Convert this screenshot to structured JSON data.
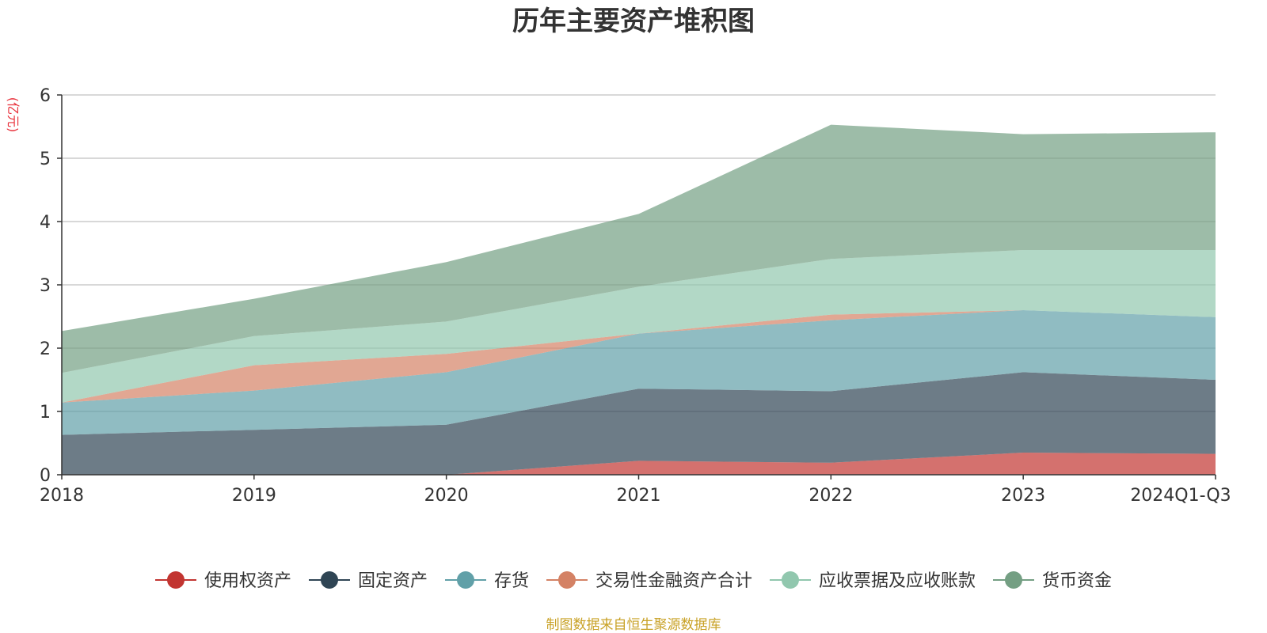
{
  "chart_data": {
    "type": "area",
    "stacked": true,
    "title": "历年主要资产堆积图",
    "ylabel": "(亿元)",
    "xlabel": "",
    "x": [
      "2018",
      "2019",
      "2020",
      "2021",
      "2022",
      "2023",
      "2024Q1-Q3"
    ],
    "ylim": [
      0,
      6
    ],
    "yticks": [
      0,
      1,
      2,
      3,
      4,
      5,
      6
    ],
    "grid": true,
    "legend_position": "bottom",
    "series": [
      {
        "name": "使用权资产",
        "color": "#c23531",
        "values": [
          0.0,
          0.0,
          0.0,
          0.22,
          0.19,
          0.35,
          0.33
        ]
      },
      {
        "name": "固定资产",
        "color": "#2f4554",
        "values": [
          0.63,
          0.71,
          0.79,
          1.14,
          1.13,
          1.27,
          1.17
        ]
      },
      {
        "name": "存货",
        "color": "#61a0a8",
        "values": [
          0.51,
          0.62,
          0.83,
          0.87,
          1.12,
          0.98,
          0.99
        ]
      },
      {
        "name": "交易性金融资产合计",
        "color": "#d48265",
        "values": [
          0.0,
          0.4,
          0.29,
          0.0,
          0.09,
          0.0,
          0.0
        ]
      },
      {
        "name": "应收票据及应收账款",
        "color": "#91c7ae",
        "values": [
          0.47,
          0.46,
          0.51,
          0.74,
          0.88,
          0.95,
          1.06
        ]
      },
      {
        "name": "货币资金",
        "color": "#749f83",
        "values": [
          0.66,
          0.59,
          0.94,
          1.15,
          2.12,
          1.83,
          1.86
        ]
      }
    ],
    "source_note": "制图数据来自恒生聚源数据库"
  }
}
